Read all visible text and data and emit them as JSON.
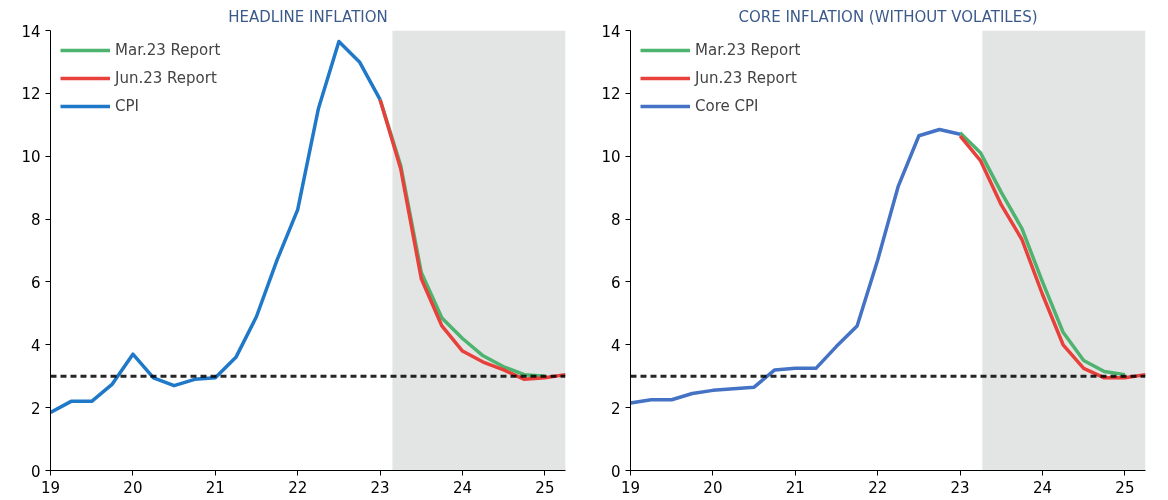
{
  "chart_data": [
    {
      "type": "line",
      "title": "HEADLINE INFLATION",
      "xlim": [
        19,
        25.25
      ],
      "xticks": [
        19,
        20,
        21,
        22,
        23,
        24,
        25
      ],
      "ylim": [
        0,
        14
      ],
      "yticks": [
        0,
        2,
        4,
        6,
        8,
        10,
        12,
        14
      ],
      "grid": false,
      "legend": "top left",
      "line_style": "solid",
      "series": [
        {
          "name": "Mar.23 Report",
          "color": "#4db36e",
          "x": [
            23,
            23.25,
            23.5,
            23.75,
            24,
            24.25,
            24.5,
            24.75,
            25
          ],
          "values": [
            11.8,
            9.7,
            6.3,
            4.85,
            4.2,
            3.65,
            3.3,
            3.05,
            3.0
          ]
        },
        {
          "name": "Jun.23 Report",
          "color": "#e8403a",
          "x": [
            23,
            23.25,
            23.5,
            23.75,
            24,
            24.25,
            24.5,
            24.75,
            25,
            25.25
          ],
          "values": [
            11.8,
            9.6,
            6.1,
            4.6,
            3.8,
            3.45,
            3.2,
            2.9,
            2.95,
            3.05
          ]
        },
        {
          "name": "CPI",
          "color": "#1f78c8",
          "x": [
            19,
            19.25,
            19.5,
            19.75,
            20,
            20.25,
            20.5,
            20.75,
            21,
            21.25,
            21.5,
            21.75,
            22,
            22.25,
            22.5,
            22.75,
            23
          ],
          "values": [
            1.85,
            2.2,
            2.2,
            2.75,
            3.7,
            2.95,
            2.7,
            2.9,
            2.95,
            3.6,
            4.9,
            6.7,
            8.3,
            11.5,
            13.65,
            13.0,
            11.8
          ]
        }
      ],
      "ref_lines": [
        {
          "axis": "y",
          "value": 3,
          "label": null,
          "color": "#000000",
          "line_style": "dashed"
        }
      ],
      "bands": [
        {
          "axis": "x",
          "from": 23.15,
          "to": 25.25,
          "label": null,
          "color": "#e3e4e4"
        }
      ]
    },
    {
      "type": "line",
      "title": "CORE INFLATION (WITHOUT VOLATILES)",
      "xlim": [
        19,
        25.25
      ],
      "xticks": [
        19,
        20,
        21,
        22,
        23,
        24,
        25
      ],
      "ylim": [
        0,
        14
      ],
      "yticks": [
        0,
        2,
        4,
        6,
        8,
        10,
        12,
        14
      ],
      "grid": false,
      "legend": "top left",
      "line_style": "solid",
      "series": [
        {
          "name": "Mar.23 Report",
          "color": "#4db36e",
          "x": [
            23,
            23.25,
            23.5,
            23.75,
            24,
            24.25,
            24.5,
            24.75,
            25
          ],
          "values": [
            10.75,
            10.1,
            8.85,
            7.7,
            6.0,
            4.4,
            3.5,
            3.15,
            3.05
          ]
        },
        {
          "name": "Jun.23 Report",
          "color": "#e8403a",
          "x": [
            23,
            23.25,
            23.5,
            23.75,
            24,
            24.25,
            24.5,
            24.75,
            25,
            25.25
          ],
          "values": [
            10.65,
            9.85,
            8.45,
            7.35,
            5.6,
            4.0,
            3.25,
            2.95,
            2.95,
            3.05
          ]
        },
        {
          "name": "Core CPI",
          "color": "#4472c4",
          "x": [
            19,
            19.25,
            19.5,
            19.75,
            20,
            20.25,
            20.5,
            20.75,
            21,
            21.25,
            21.5,
            21.75,
            22,
            22.25,
            22.5,
            22.75,
            23
          ],
          "values": [
            2.15,
            2.25,
            2.25,
            2.45,
            2.55,
            2.6,
            2.65,
            3.2,
            3.25,
            3.25,
            3.95,
            4.6,
            6.7,
            9.05,
            10.65,
            10.85,
            10.7
          ]
        }
      ],
      "ref_lines": [
        {
          "axis": "y",
          "value": 3,
          "label": null,
          "color": "#000000",
          "line_style": "dashed"
        }
      ],
      "bands": [
        {
          "axis": "x",
          "from": 23.27,
          "to": 25.25,
          "label": null,
          "color": "#e3e4e4"
        }
      ]
    }
  ]
}
